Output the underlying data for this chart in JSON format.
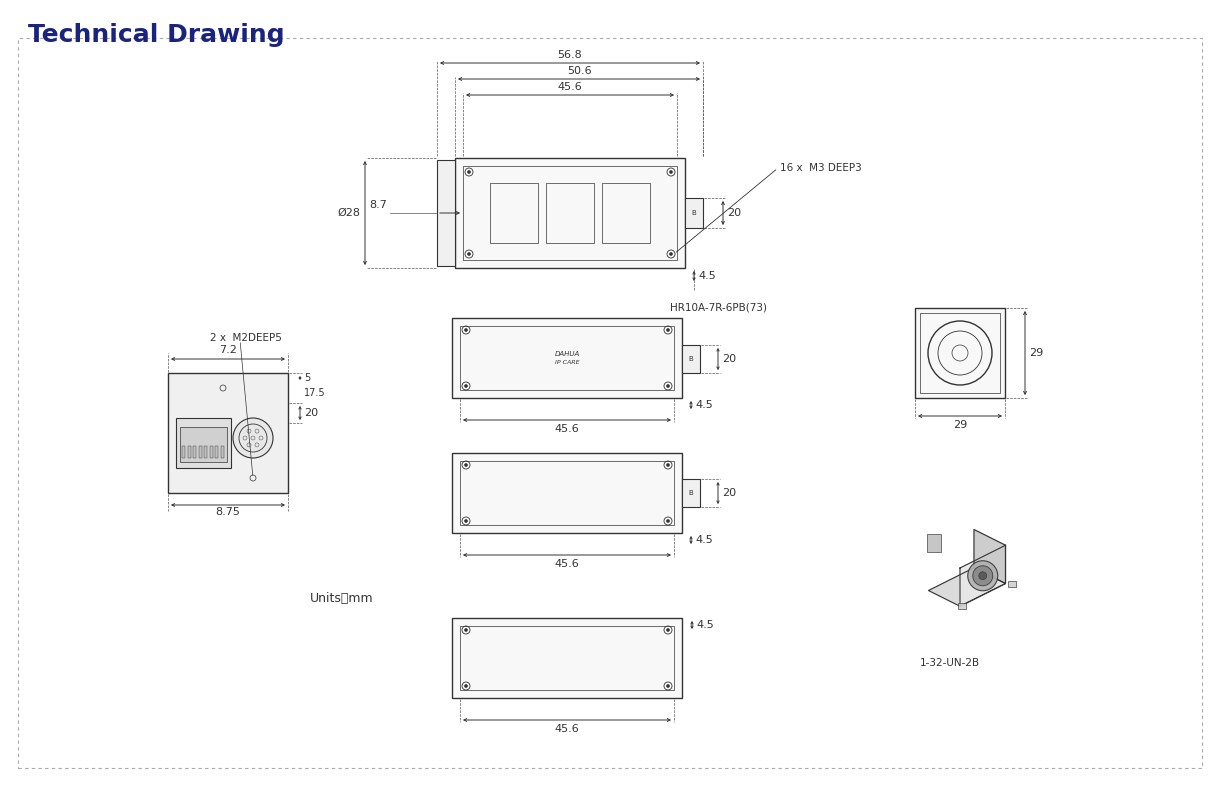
{
  "title": "Technical Drawing",
  "title_color": "#1a237e",
  "title_fontsize": 18,
  "title_fontweight": "bold",
  "bg_color": "#ffffff",
  "border_color": "#888888",
  "line_color": "#333333",
  "dim_color": "#333333",
  "text_color": "#333333",
  "dim_fontsize": 8,
  "label_fontsize": 7.5,
  "units_text": "Units：mm",
  "connector_label": "HR10A-7R-6PB(73)",
  "m3_label": "16 x  M3 DEEP3",
  "m2_label": "2 x  M2DEEP5",
  "model_label": "1-32-UN-2B"
}
